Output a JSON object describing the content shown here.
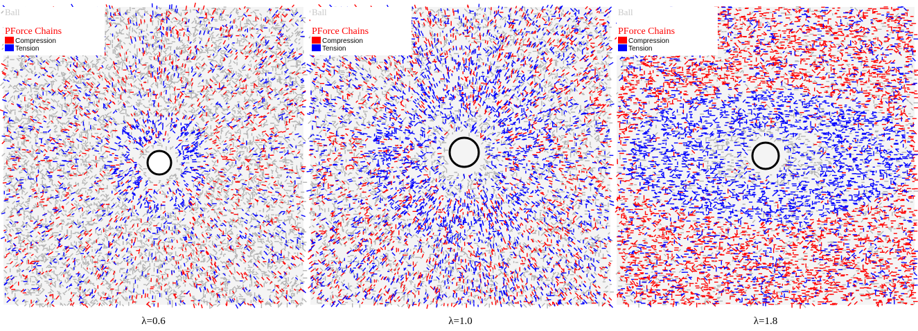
{
  "panels": [
    {
      "legend": {
        "title": "Ball",
        "subtitle": "PForce Chains",
        "items": [
          "Compression",
          "Tension"
        ]
      },
      "caption": "λ=0.6"
    },
    {
      "legend": {
        "title": "Ball",
        "subtitle": "PForce Chains",
        "items": [
          "Compression",
          "Tension"
        ]
      },
      "caption": "λ=1.0"
    },
    {
      "legend": {
        "title": "Ball",
        "subtitle": "PForce Chains",
        "items": [
          "Compression",
          "Tension"
        ]
      },
      "caption": "λ=1.8"
    }
  ]
}
